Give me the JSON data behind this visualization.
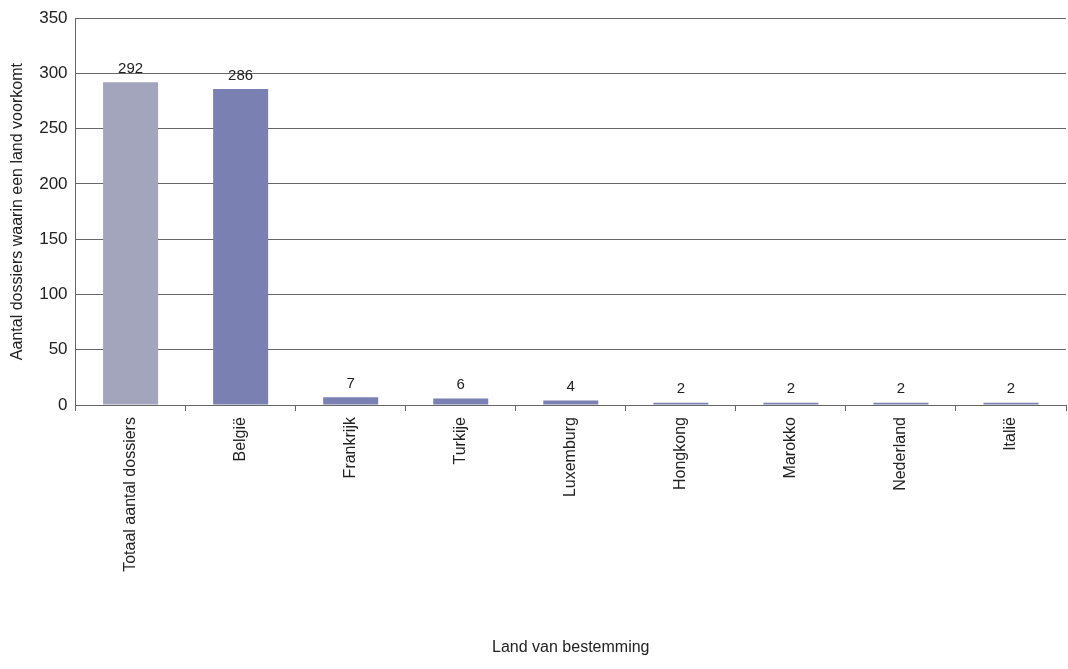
{
  "chart_data": {
    "type": "bar",
    "xlabel": "Land van bestemming",
    "ylabel": "Aantal dossiers waarin een land voorkomt",
    "categories": [
      "Totaal aantal dossiers",
      "België",
      "Frankrijk",
      "Turkije",
      "Luxemburg",
      "Hongkong",
      "Marokko",
      "Nederland",
      "Italië"
    ],
    "values": [
      292,
      286,
      7,
      6,
      4,
      2,
      2,
      2,
      2
    ],
    "colors": [
      "#a3a5bd",
      "#7b80b2",
      "#7b80b2",
      "#7b80b2",
      "#7b80b2",
      "#7b80b2",
      "#7b80b2",
      "#7b80b2",
      "#7b80b2"
    ],
    "ylim": [
      0,
      350
    ],
    "yticks": [
      0,
      50,
      100,
      150,
      200,
      250,
      300,
      350
    ],
    "grid": "y",
    "data_labels": true
  }
}
